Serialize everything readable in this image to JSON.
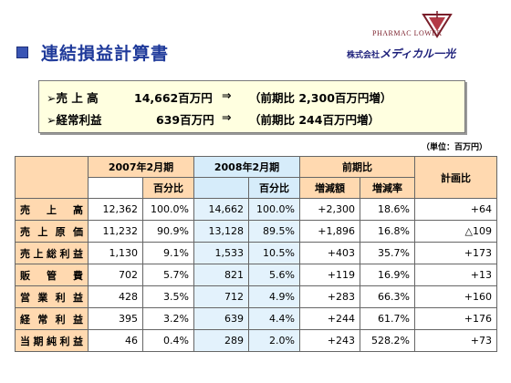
{
  "title": "連結損益計算書",
  "logo": {
    "brand": "PHARMAC LOWER",
    "company_prefix": "株式会社",
    "company_name": "メディカル一光"
  },
  "summary": {
    "lines": [
      {
        "label": "➢売 上 高",
        "value": "14,662百万円",
        "arrow": "⇒",
        "compare": "（前期比 2,300百万円増）"
      },
      {
        "label": "➢経常利益",
        "value": "639百万円",
        "arrow": "⇒",
        "compare": "（前期比 244百万円増）"
      }
    ]
  },
  "unit": "（単位：百万円）",
  "table": {
    "period_2007": "2007年2月期",
    "period_2008": "2008年2月期",
    "yoy": "前期比",
    "plan_ratio": "計画比",
    "pct_label": "百分比",
    "change_amount": "増減額",
    "change_rate": "増減率",
    "rows": [
      {
        "label": "売上高",
        "v2007": "12,362",
        "p2007": "100.0%",
        "v2008": "14,662",
        "p2008": "100.0%",
        "diff": "+2,300",
        "rate": "18.6%",
        "plan": "+64"
      },
      {
        "label": "売上原価",
        "v2007": "11,232",
        "p2007": "90.9%",
        "v2008": "13,128",
        "p2008": "89.5%",
        "diff": "+1,896",
        "rate": "16.8%",
        "plan": "△109"
      },
      {
        "label": "売上総利益",
        "v2007": "1,130",
        "p2007": "9.1%",
        "v2008": "1,533",
        "p2008": "10.5%",
        "diff": "+403",
        "rate": "35.7%",
        "plan": "+173"
      },
      {
        "label": "販管費",
        "v2007": "702",
        "p2007": "5.7%",
        "v2008": "821",
        "p2008": "5.6%",
        "diff": "+119",
        "rate": "16.9%",
        "plan": "+13"
      },
      {
        "label": "営業利益",
        "v2007": "428",
        "p2007": "3.5%",
        "v2008": "712",
        "p2008": "4.9%",
        "diff": "+283",
        "rate": "66.3%",
        "plan": "+160"
      },
      {
        "label": "経常利益",
        "v2007": "395",
        "p2007": "3.2%",
        "v2008": "639",
        "p2008": "4.4%",
        "diff": "+244",
        "rate": "61.7%",
        "plan": "+176"
      },
      {
        "label": "当期純利益",
        "v2007": "46",
        "p2007": "0.4%",
        "v2008": "289",
        "p2008": "2.0%",
        "diff": "+243",
        "rate": "528.2%",
        "plan": "+73"
      }
    ]
  },
  "colors": {
    "title": "#1f3a9a",
    "label_bg": "#ffd9b0",
    "highlight_bg": "#e3f2fc",
    "summary_bg": "#ffffe0"
  }
}
